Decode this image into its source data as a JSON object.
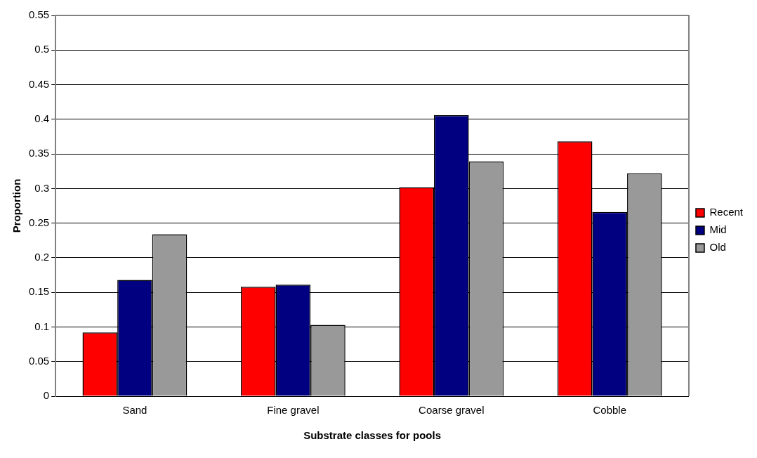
{
  "chart_data": {
    "type": "bar",
    "xlabel": "Substrate classes for pools",
    "ylabel": "Proportion",
    "categories": [
      "Sand",
      "Fine gravel",
      "Coarse gravel",
      "Cobble"
    ],
    "series": [
      {
        "name": "Recent",
        "color": "#ff0000",
        "values": [
          0.092,
          0.158,
          0.302,
          0.368
        ]
      },
      {
        "name": "Mid",
        "color": "#000080",
        "values": [
          0.168,
          0.161,
          0.406,
          0.266
        ]
      },
      {
        "name": "Old",
        "color": "#999999",
        "values": [
          0.234,
          0.103,
          0.339,
          0.322
        ]
      }
    ],
    "ylim": [
      0,
      0.55
    ],
    "yticks": [
      0,
      0.05,
      0.1,
      0.15,
      0.2,
      0.25,
      0.3,
      0.35,
      0.4,
      0.45,
      0.5,
      0.55
    ],
    "grid": "y",
    "legend": "right"
  }
}
